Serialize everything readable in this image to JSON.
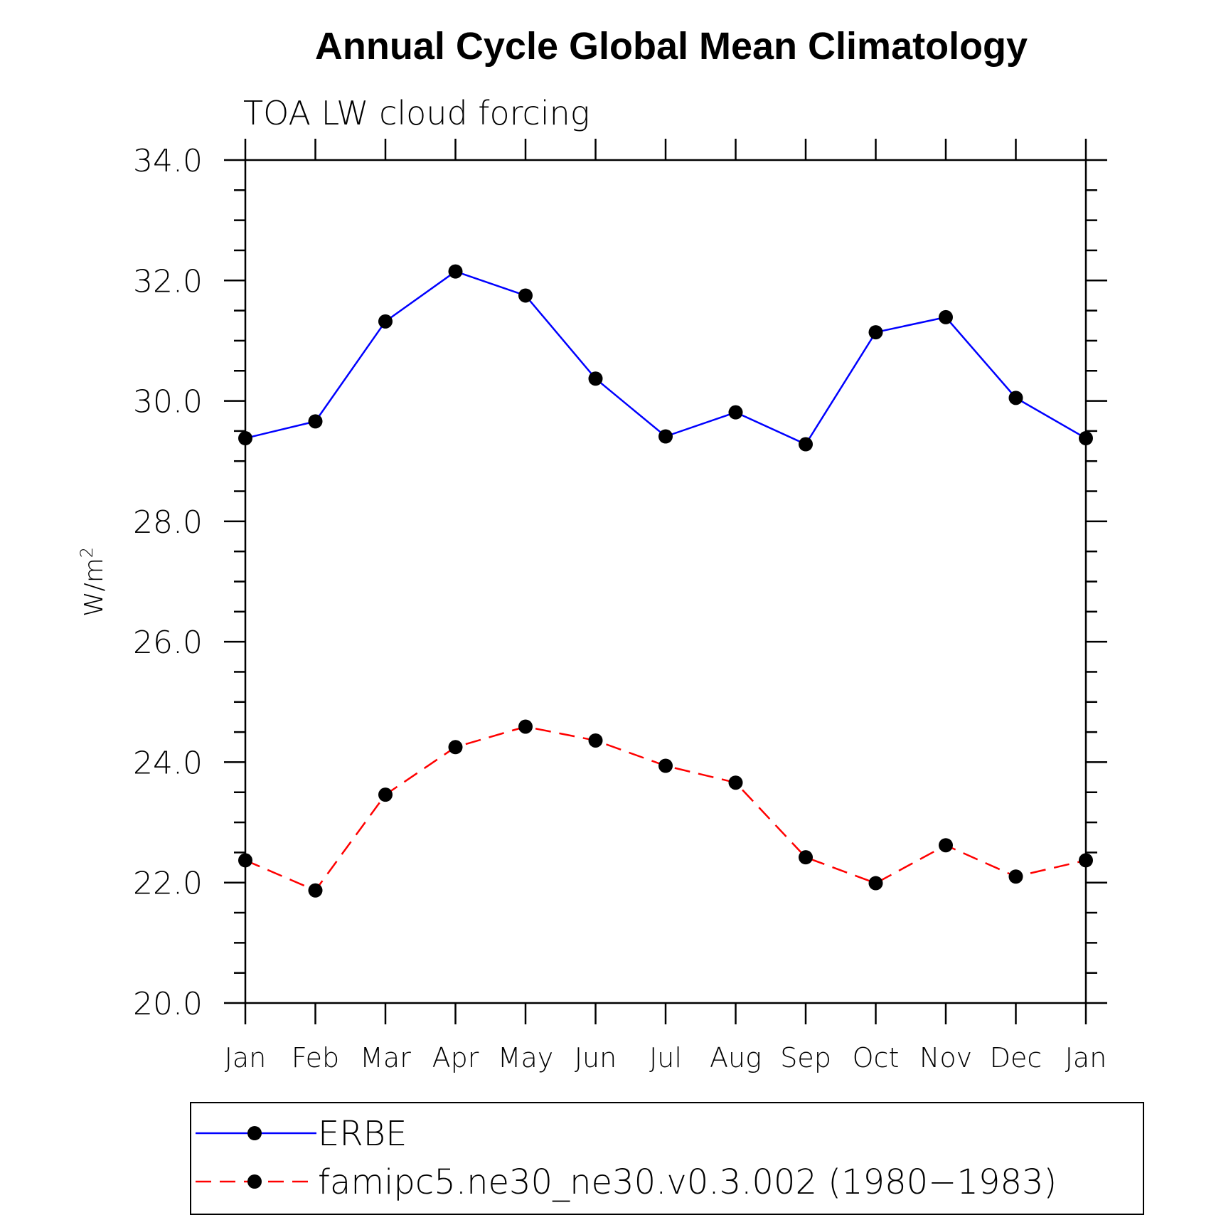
{
  "chart_data": {
    "type": "line",
    "title": "Annual Cycle Global Mean Climatology",
    "subtitle": "TOA LW cloud forcing",
    "ylabel": "W/m",
    "ylabel_superscript": "2",
    "ylim": [
      20.0,
      34.0
    ],
    "yticks": [
      20.0,
      22.0,
      24.0,
      26.0,
      28.0,
      30.0,
      32.0,
      34.0
    ],
    "ytick_labels": [
      "20.0",
      "22.0",
      "24.0",
      "26.0",
      "28.0",
      "30.0",
      "32.0",
      "34.0"
    ],
    "categories": [
      "Jan",
      "Feb",
      "Mar",
      "Apr",
      "May",
      "Jun",
      "Jul",
      "Aug",
      "Sep",
      "Oct",
      "Nov",
      "Dec",
      "Jan"
    ],
    "series": [
      {
        "name": "ERBE",
        "color": "#0000ff",
        "dash": "solid",
        "values": [
          29.38,
          29.66,
          31.32,
          32.15,
          31.75,
          30.37,
          29.41,
          29.81,
          29.28,
          31.14,
          31.39,
          30.05,
          29.38
        ]
      },
      {
        "name": "famipc5.ne30_ne30.v0.3.002 (1980−1983)",
        "color": "#ff0000",
        "dash": "dashed",
        "values": [
          22.37,
          21.87,
          23.46,
          24.25,
          24.59,
          24.36,
          23.94,
          23.66,
          22.42,
          21.99,
          22.62,
          22.1,
          22.37
        ]
      }
    ],
    "legend_position": "bottom",
    "grid": false
  }
}
